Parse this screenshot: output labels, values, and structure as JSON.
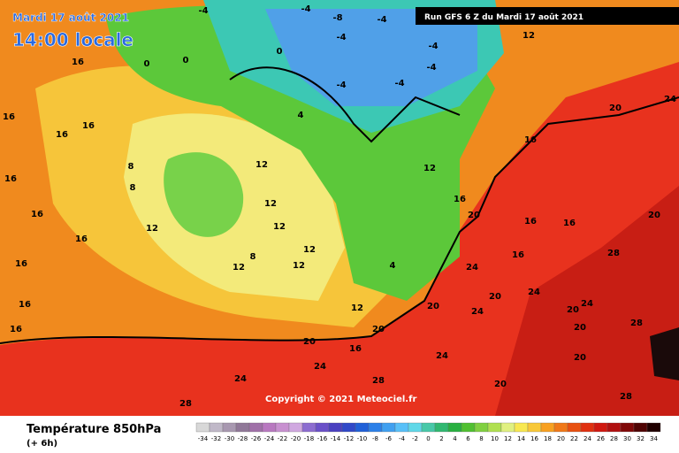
{
  "header": {
    "date": "Mardi 17 août 2021",
    "time": "14:00 locale",
    "run": "Run GFS 6 Z du Mardi 17 août 2021"
  },
  "copyright": "Copyright © 2021 Meteociel.fr",
  "legend": {
    "title": "Température 850hPa",
    "subtitle": "(+ 6h)",
    "ticks": [
      -34,
      -32,
      -30,
      -28,
      -26,
      -24,
      -22,
      -20,
      -18,
      -16,
      -14,
      -12,
      -10,
      -8,
      -6,
      -4,
      -2,
      0,
      2,
      4,
      6,
      8,
      10,
      12,
      14,
      16,
      18,
      20,
      22,
      24,
      26,
      28,
      30,
      32,
      34
    ],
    "colors": [
      "#d8d8d8",
      "#c0b8c8",
      "#a898b0",
      "#907898",
      "#a070a8",
      "#b878c0",
      "#c890d0",
      "#d0a8e0",
      "#8c6cd0",
      "#6a50c8",
      "#4a40c0",
      "#3048c8",
      "#2060d8",
      "#2c80e8",
      "#40a0f0",
      "#58c0f8",
      "#60d8e8",
      "#48c8a8",
      "#30b870",
      "#28b040",
      "#50c030",
      "#80d040",
      "#b0e050",
      "#e0f080",
      "#f8e850",
      "#f8c838",
      "#f8a020",
      "#f07818",
      "#e85010",
      "#e03010",
      "#d01810",
      "#b01010",
      "#800808",
      "#500404",
      "#200000"
    ]
  },
  "map_labels": [
    "16",
    "16",
    "16",
    "16",
    "16",
    "16",
    "16",
    "16",
    "16",
    "16",
    "8",
    "8",
    "12",
    "12",
    "12",
    "12",
    "12",
    "8",
    "12",
    "12",
    "4",
    "0",
    "0",
    "0",
    "-4",
    "-4",
    "-8",
    "-4",
    "-4",
    "-4",
    "-4",
    "-4",
    "-4",
    "12",
    "12",
    "16",
    "20",
    "16",
    "20",
    "24",
    "20",
    "28",
    "24",
    "20",
    "24",
    "24",
    "20",
    "24",
    "20",
    "28",
    "20",
    "20",
    "24",
    "20",
    "4",
    "12",
    "20",
    "24",
    "16",
    "24",
    "28",
    "28",
    "28",
    "20",
    "16",
    "16",
    "16"
  ]
}
